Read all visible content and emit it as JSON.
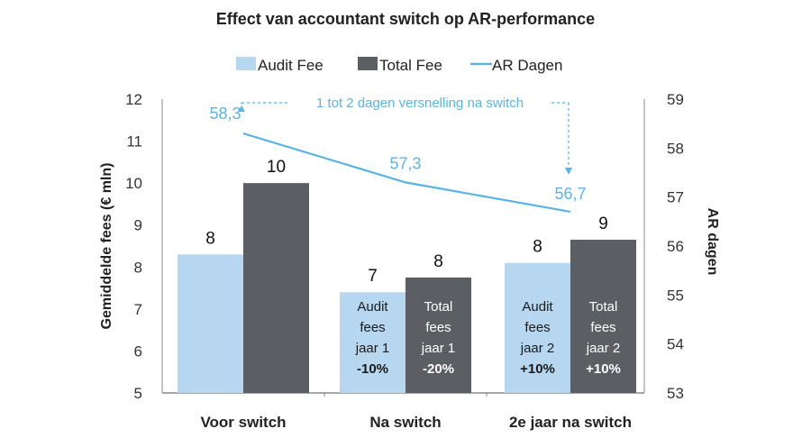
{
  "chart_data": {
    "type": "bar",
    "title": "Effect van accountant switch op AR-performance",
    "categories": [
      "Voor switch",
      "Na switch",
      "2e jaar na switch"
    ],
    "series": [
      {
        "name": "Audit Fee",
        "kind": "bar",
        "axis": "left",
        "color": "#b7d7f1",
        "values": [
          8.3,
          7.4,
          8.1
        ],
        "labels": [
          "8",
          "7",
          "8"
        ]
      },
      {
        "name": "Total Fee",
        "kind": "bar",
        "axis": "left",
        "color": "#5b5e63",
        "values": [
          10.0,
          7.75,
          8.65
        ],
        "labels": [
          "10",
          "8",
          "9"
        ]
      },
      {
        "name": "AR Dagen",
        "kind": "line",
        "axis": "right",
        "color": "#5bb4e5",
        "values": [
          58.3,
          57.3,
          56.7
        ],
        "labels": [
          "58,3",
          "57,3",
          "56,7"
        ]
      }
    ],
    "ylabel": "Gemiddelde fees (€ mln)",
    "y2label": "AR dagen",
    "ylim": [
      5,
      12
    ],
    "y2lim": [
      53,
      59
    ],
    "yticks": [
      "5",
      "6",
      "7",
      "8",
      "9",
      "10",
      "11",
      "12"
    ],
    "y2ticks": [
      "53",
      "54",
      "55",
      "56",
      "57",
      "58",
      "59"
    ],
    "grid": false,
    "legend_position": "top-center",
    "bar_annotations": [
      {
        "category": 1,
        "series": 0,
        "lines": [
          "Audit",
          "fees",
          "jaar 1"
        ],
        "change": "-10%"
      },
      {
        "category": 1,
        "series": 1,
        "lines": [
          "Total",
          "fees",
          "jaar 1"
        ],
        "change": "-20%"
      },
      {
        "category": 2,
        "series": 0,
        "lines": [
          "Audit",
          "fees",
          "jaar 2"
        ],
        "change": "+10%"
      },
      {
        "category": 2,
        "series": 1,
        "lines": [
          "Total",
          "fees",
          "jaar 2"
        ],
        "change": "+10%"
      }
    ],
    "callout": "1 tot 2 dagen versnelling na switch"
  }
}
